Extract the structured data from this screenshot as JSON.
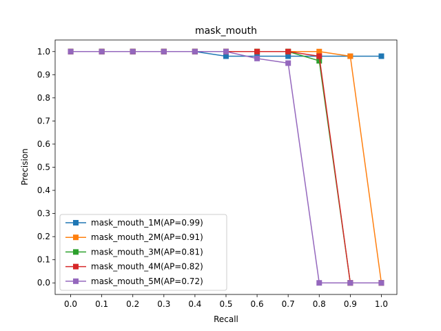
{
  "chart_data": {
    "type": "line",
    "title": "mask_mouth",
    "xlabel": "Recall",
    "ylabel": "Precision",
    "xlim": [
      -0.05,
      1.05
    ],
    "ylim": [
      -0.05,
      1.05
    ],
    "xticks": [
      "0.0",
      "0.1",
      "0.2",
      "0.3",
      "0.4",
      "0.5",
      "0.6",
      "0.7",
      "0.8",
      "0.9",
      "1.0"
    ],
    "yticks": [
      "0.0",
      "0.1",
      "0.2",
      "0.3",
      "0.4",
      "0.5",
      "0.6",
      "0.7",
      "0.8",
      "0.9",
      "1.0"
    ],
    "grid": false,
    "legend_position": "lower-left",
    "marker": "square",
    "x": [
      0.0,
      0.1,
      0.2,
      0.3,
      0.4,
      0.5,
      0.6,
      0.7,
      0.8,
      0.9,
      1.0
    ],
    "series": [
      {
        "name": "mask_mouth_1M(AP=0.99)",
        "color": "#1f77b4",
        "values": [
          1.0,
          1.0,
          1.0,
          1.0,
          1.0,
          0.98,
          0.98,
          0.98,
          0.98,
          0.98,
          0.98
        ]
      },
      {
        "name": "mask_mouth_2M(AP=0.91)",
        "color": "#ff7f0e",
        "values": [
          1.0,
          1.0,
          1.0,
          1.0,
          1.0,
          1.0,
          1.0,
          1.0,
          1.0,
          0.98,
          0.0
        ]
      },
      {
        "name": "mask_mouth_3M(AP=0.81)",
        "color": "#2ca02c",
        "values": [
          1.0,
          1.0,
          1.0,
          1.0,
          1.0,
          1.0,
          1.0,
          1.0,
          0.96,
          0.0,
          0.0
        ]
      },
      {
        "name": "mask_mouth_4M(AP=0.82)",
        "color": "#d62728",
        "values": [
          1.0,
          1.0,
          1.0,
          1.0,
          1.0,
          1.0,
          1.0,
          1.0,
          0.98,
          0.0,
          0.0
        ]
      },
      {
        "name": "mask_mouth_5M(AP=0.72)",
        "color": "#9467bd",
        "values": [
          1.0,
          1.0,
          1.0,
          1.0,
          1.0,
          1.0,
          0.97,
          0.95,
          0.0,
          0.0,
          0.0
        ]
      }
    ]
  }
}
